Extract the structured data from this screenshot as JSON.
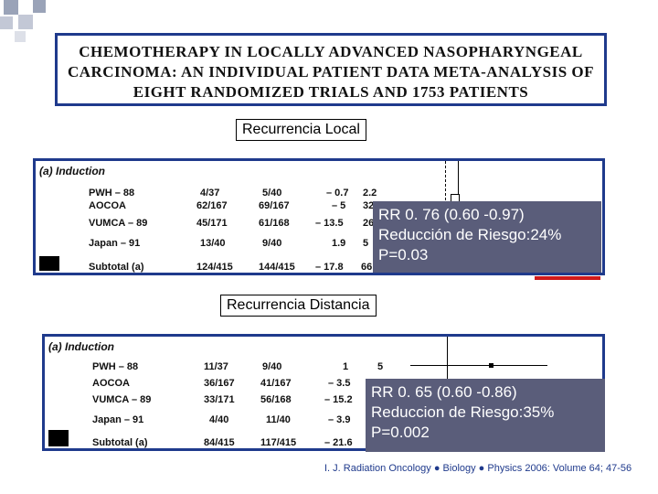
{
  "title": {
    "line1": "CHEMOTHERAPY IN LOCALLY ADVANCED NASOPHARYNGEAL",
    "line2": "CARCINOMA: AN INDIVIDUAL PATIENT DATA META-ANALYSIS OF",
    "line3": "EIGHT RANDOMIZED TRIALS AND 1753 PATIENTS"
  },
  "colors": {
    "border_blue": "#1f3a8c",
    "result_bg": "#5a5d7a",
    "accent_red": "#d01a1a"
  },
  "local": {
    "label": "Recurrencia Local",
    "header": "(a) Induction",
    "rows": [
      {
        "trial": "PWH – 88",
        "c1": "4/37",
        "c2": "5/40",
        "c3": "– 0.7",
        "c4": "2.2"
      },
      {
        "trial": "AOCOA",
        "c1": "62/167",
        "c2": "69/167",
        "c3": "– 5",
        "c4": "32"
      },
      {
        "trial": "VUMCA – 89",
        "c1": "45/171",
        "c2": "61/168",
        "c3": "– 13.5",
        "c4": "26"
      },
      {
        "trial": "Japan – 91",
        "c1": "13/40",
        "c2": "9/40",
        "c3": "1.9",
        "c4": "5"
      },
      {
        "trial": "Subtotal (a)",
        "c1": "124/415",
        "c2": "144/415",
        "c3": "– 17.8",
        "c4": "66"
      }
    ],
    "result": {
      "rr": "RR 0. 76 (0.60 -0.97)",
      "reduction": "Reducción de Riesgo:24%",
      "p": "P=0.03"
    }
  },
  "distance": {
    "label": "Recurrencia Distancia",
    "header": "(a) Induction",
    "rows": [
      {
        "trial": "PWH – 88",
        "c1": "11/37",
        "c2": "9/40",
        "c3": "1",
        "c4": "5"
      },
      {
        "trial": "AOCOA",
        "c1": "36/167",
        "c2": "41/167",
        "c3": "– 3.5",
        "c4": ""
      },
      {
        "trial": "VUMCA – 89",
        "c1": "33/171",
        "c2": "56/168",
        "c3": "– 15.2",
        "c4": ""
      },
      {
        "trial": "Japan – 91",
        "c1": "4/40",
        "c2": "11/40",
        "c3": "– 3.9",
        "c4": ""
      },
      {
        "trial": "Subtotal (a)",
        "c1": "84/415",
        "c2": "117/415",
        "c3": "– 21.6",
        "c4": ""
      }
    ],
    "result": {
      "rr": "RR 0. 65 (0.60 -0.86)",
      "reduction": "Reduccion de Riesgo:35%",
      "p": "P=0.002"
    }
  },
  "citation": "I. J. Radiation Oncology ● Biology ● Physics 2006: Volume 64; 47-56"
}
